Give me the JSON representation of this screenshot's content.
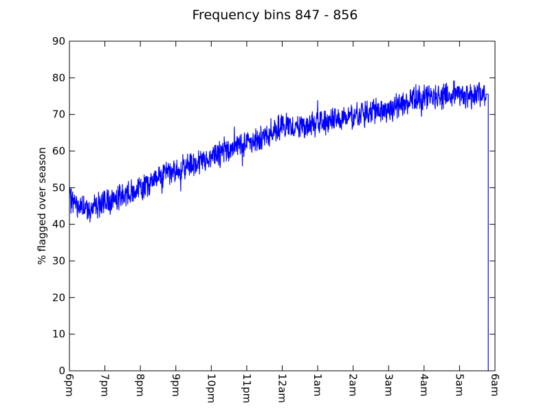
{
  "chart_data": {
    "type": "line",
    "title": "Frequency bins 847 - 856",
    "xlabel": "",
    "ylabel": "% flagged over season",
    "x_ticks": [
      "6pm",
      "7pm",
      "8pm",
      "9pm",
      "10pm",
      "11pm",
      "12am",
      "1am",
      "2am",
      "3am",
      "4am",
      "5am",
      "6am"
    ],
    "xlim": [
      0,
      12
    ],
    "ylim": [
      0,
      90
    ],
    "y_ticks": [
      0,
      10,
      20,
      30,
      40,
      50,
      60,
      70,
      80,
      90
    ],
    "grid": false,
    "series_color": "#0000ff",
    "series": [
      {
        "values_hours_since_6pm": [
          0.0,
          0.25,
          0.5,
          0.75,
          1.0,
          1.25,
          1.5,
          1.75,
          2.0,
          2.25,
          2.5,
          2.75,
          3.0,
          3.25,
          3.5,
          3.75,
          4.0,
          4.25,
          4.5,
          4.75,
          5.0,
          5.25,
          5.5,
          5.75,
          6.0,
          6.25,
          6.5,
          6.75,
          7.0,
          7.25,
          7.5,
          7.75,
          8.0,
          8.25,
          8.5,
          8.75,
          9.0,
          9.25,
          9.5,
          9.75,
          10.0,
          10.25,
          10.5,
          10.75,
          11.0,
          11.25,
          11.5,
          11.75,
          11.8,
          11.81
        ],
        "values_pct": [
          47,
          45,
          44,
          45,
          46,
          47,
          48,
          49,
          49.5,
          51,
          53,
          54,
          54.5,
          55,
          56,
          57,
          58,
          59,
          60.5,
          61.5,
          62.5,
          63,
          64,
          65.5,
          66.5,
          66.5,
          66.5,
          67,
          67.5,
          68,
          68.5,
          69,
          69.5,
          70,
          70.5,
          71,
          71.5,
          72.5,
          73.5,
          74.5,
          74.5,
          75,
          75,
          75.5,
          75.5,
          75.5,
          75.5,
          75.5,
          75.5,
          0
        ]
      }
    ]
  }
}
